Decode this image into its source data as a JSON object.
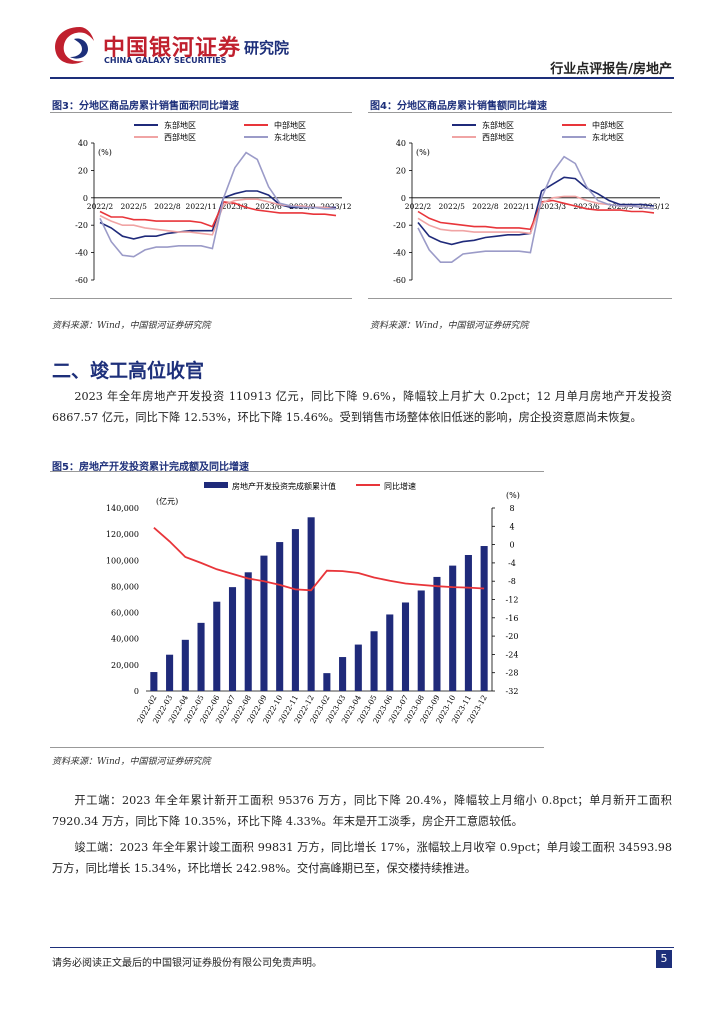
{
  "header": {
    "company_cn": "中国银河证券",
    "company_en": "CHINA GALAXY SECURITIES",
    "institute": "研究院",
    "report_type": "行业点评报告/房地产"
  },
  "fig3": {
    "title": "图3：分地区商品房累计销售面积同比增速",
    "source": "资料来源：Wind，中国银河证券研究院",
    "unit": "(%)",
    "chart_data": {
      "type": "line",
      "x": [
        "2022/2",
        "2022/3",
        "2022/4",
        "2022/5",
        "2022/6",
        "2022/7",
        "2022/8",
        "2022/9",
        "2022/10",
        "2022/11",
        "2022/12",
        "2023/2",
        "2023/3",
        "2023/4",
        "2023/5",
        "2023/6",
        "2023/7",
        "2023/8",
        "2023/9",
        "2023/10",
        "2023/11",
        "2023/12"
      ],
      "x_ticks": [
        "2022/2",
        "2022/5",
        "2022/8",
        "2022/11",
        "2023/3",
        "2023/6",
        "2023/9",
        "2023/12"
      ],
      "ylim": [
        -60,
        40
      ],
      "y_ticks": [
        40,
        20,
        0,
        -20,
        -40,
        -60
      ],
      "legend": [
        "东部地区",
        "中部地区",
        "西部地区",
        "东北地区"
      ],
      "series": [
        {
          "name": "东部地区",
          "color": "#1f2a7a",
          "values": [
            -18,
            -22,
            -28,
            -30,
            -28,
            -28,
            -26,
            -25,
            -24,
            -24,
            -24,
            0,
            3,
            5,
            5,
            2,
            -5,
            -7,
            -7,
            -7,
            -7,
            -7
          ]
        },
        {
          "name": "中部地区",
          "color": "#e8353a",
          "values": [
            -10,
            -14,
            -14,
            -16,
            -16,
            -17,
            -17,
            -17,
            -17,
            -18,
            -21,
            -3,
            -4,
            -7,
            -9,
            -10,
            -11,
            -11,
            -11,
            -12,
            -12,
            -13
          ]
        },
        {
          "name": "西部地区",
          "color": "#f0a4a4",
          "values": [
            -13,
            -17,
            -20,
            -20,
            -22,
            -23,
            -24,
            -25,
            -25,
            -26,
            -27,
            -5,
            -2,
            -1,
            -1,
            -3,
            -5,
            -6,
            -6,
            -7,
            -7,
            -8
          ]
        },
        {
          "name": "东北地区",
          "color": "#9b9bc8",
          "values": [
            -15,
            -32,
            -42,
            -43,
            -38,
            -36,
            -36,
            -35,
            -35,
            -35,
            -37,
            0,
            22,
            33,
            28,
            8,
            -4,
            -6,
            -7,
            -7,
            -8,
            -8
          ]
        }
      ]
    }
  },
  "fig4": {
    "title": "图4：分地区商品房累计销售额同比增速",
    "source": "资料来源：Wind，中国银河证券研究院",
    "unit": "(%)",
    "chart_data": {
      "type": "line",
      "x": [
        "2022/2",
        "2022/3",
        "2022/4",
        "2022/5",
        "2022/6",
        "2022/7",
        "2022/8",
        "2022/9",
        "2022/10",
        "2022/11",
        "2022/12",
        "2023/2",
        "2023/3",
        "2023/4",
        "2023/5",
        "2023/6",
        "2023/7",
        "2023/8",
        "2023/9",
        "2023/10",
        "2023/11",
        "2023/12"
      ],
      "x_ticks": [
        "2022/2",
        "2022/5",
        "2022/8",
        "2022/11",
        "2023/3",
        "2023/6",
        "2023/9",
        "2023/12"
      ],
      "ylim": [
        -60,
        40
      ],
      "y_ticks": [
        40,
        20,
        0,
        -20,
        -40,
        -60
      ],
      "legend": [
        "东部地区",
        "中部地区",
        "西部地区",
        "东北地区"
      ],
      "series": [
        {
          "name": "东部地区",
          "color": "#1f2a7a",
          "values": [
            -18,
            -28,
            -32,
            -34,
            -32,
            -31,
            -29,
            -28,
            -27,
            -27,
            -26,
            5,
            10,
            15,
            14,
            7,
            3,
            -2,
            -5,
            -5,
            -5,
            -6
          ]
        },
        {
          "name": "中部地区",
          "color": "#e8353a",
          "values": [
            -10,
            -15,
            -18,
            -19,
            -20,
            -21,
            -21,
            -22,
            -22,
            -22,
            -23,
            -3,
            -2,
            -4,
            -6,
            -8,
            -9,
            -9,
            -9,
            -10,
            -10,
            -11
          ]
        },
        {
          "name": "西部地区",
          "color": "#f0a4a4",
          "values": [
            -15,
            -20,
            -23,
            -24,
            -24,
            -25,
            -25,
            -25,
            -25,
            -25,
            -26,
            -4,
            0,
            1,
            1,
            -2,
            -4,
            -5,
            -6,
            -6,
            -7,
            -8
          ]
        },
        {
          "name": "东北地区",
          "color": "#9b9bc8",
          "values": [
            -22,
            -38,
            -47,
            -47,
            -41,
            -40,
            -39,
            -39,
            -39,
            -39,
            -40,
            0,
            19,
            30,
            25,
            8,
            -2,
            -5,
            -6,
            -6,
            -7,
            -8
          ]
        }
      ]
    }
  },
  "section2": {
    "heading": "二、竣工高位收官",
    "para1": "2023 年全年房地产开发投资 110913 亿元，同比下降 9.6%，降幅较上月扩大 0.2pct；12 月单月房地产开发投资 6867.57 亿元，同比下降 12.53%，环比下降 15.46%。受到销售市场整体依旧低迷的影响，房企投资意愿尚未恢复。"
  },
  "fig5": {
    "title": "图5：房地产开发投资累计完成额及同比增速",
    "source": "资料来源：Wind，中国银河证券研究院",
    "left_unit": "(亿元)",
    "right_unit": "(%)",
    "chart_data": {
      "type": "bar",
      "categories": [
        "2022-02",
        "2022-03",
        "2022-04",
        "2022-05",
        "2022-06",
        "2022-07",
        "2022-08",
        "2022-09",
        "2022-10",
        "2022-11",
        "2022-12",
        "2023-02",
        "2023-03",
        "2023-04",
        "2023-05",
        "2023-06",
        "2023-07",
        "2023-08",
        "2023-09",
        "2023-10",
        "2023-11",
        "2023-12"
      ],
      "series": [
        {
          "name": "房地产开发投资完成额累计值",
          "color": "#1f2a7a",
          "type": "bar",
          "axis": "left",
          "values": [
            14499,
            27765,
            39154,
            52134,
            68314,
            79462,
            90809,
            103559,
            113945,
            123863,
            132895,
            13669,
            25974,
            35514,
            45701,
            58550,
            67717,
            76900,
            87269,
            95922,
            104045,
            110913
          ]
        },
        {
          "name": "同比增速",
          "color": "#e8353a",
          "type": "line",
          "axis": "right",
          "values": [
            3.7,
            0.7,
            -2.7,
            -4.0,
            -5.4,
            -6.4,
            -7.4,
            -8.0,
            -8.8,
            -9.8,
            -10.0,
            -5.7,
            -5.8,
            -6.2,
            -7.2,
            -7.9,
            -8.5,
            -8.8,
            -9.1,
            -9.3,
            -9.4,
            -9.6
          ]
        }
      ],
      "left_ylim": [
        0,
        140000
      ],
      "left_ticks": [
        "140,000",
        "120,000",
        "100,000",
        "80,000",
        "60,000",
        "40,000",
        "20,000",
        "0"
      ],
      "right_ylim": [
        -32,
        8
      ],
      "right_ticks": [
        "8",
        "4",
        "0",
        "-4",
        "-8",
        "-12",
        "-16",
        "-20",
        "-24",
        "-28",
        "-32"
      ],
      "legend": [
        "房地产开发投资完成额累计值",
        "同比增速"
      ]
    }
  },
  "section3": {
    "para_start": "开工端：2023 年全年累计新开工面积 95376 万方，同比下降 20.4%，降幅较上月缩小 0.8pct；单月新开工面积 7920.34 万方，同比下降 10.35%，环比下降 4.33%。年末是开工淡季，房企开工意愿较低。",
    "para_complete": "竣工端：2023 年全年累计竣工面积 99831 万方，同比增长 17%，涨幅较上月收窄 0.9pct；单月竣工面积 34593.98 万方，同比增长 15.34%，环比增长 242.98%。交付高峰期已至，保交楼持续推进。"
  },
  "footer": {
    "disclaimer": "请务必阅读正文最后的中国银河证券股份有限公司免责声明。",
    "page": "5"
  }
}
